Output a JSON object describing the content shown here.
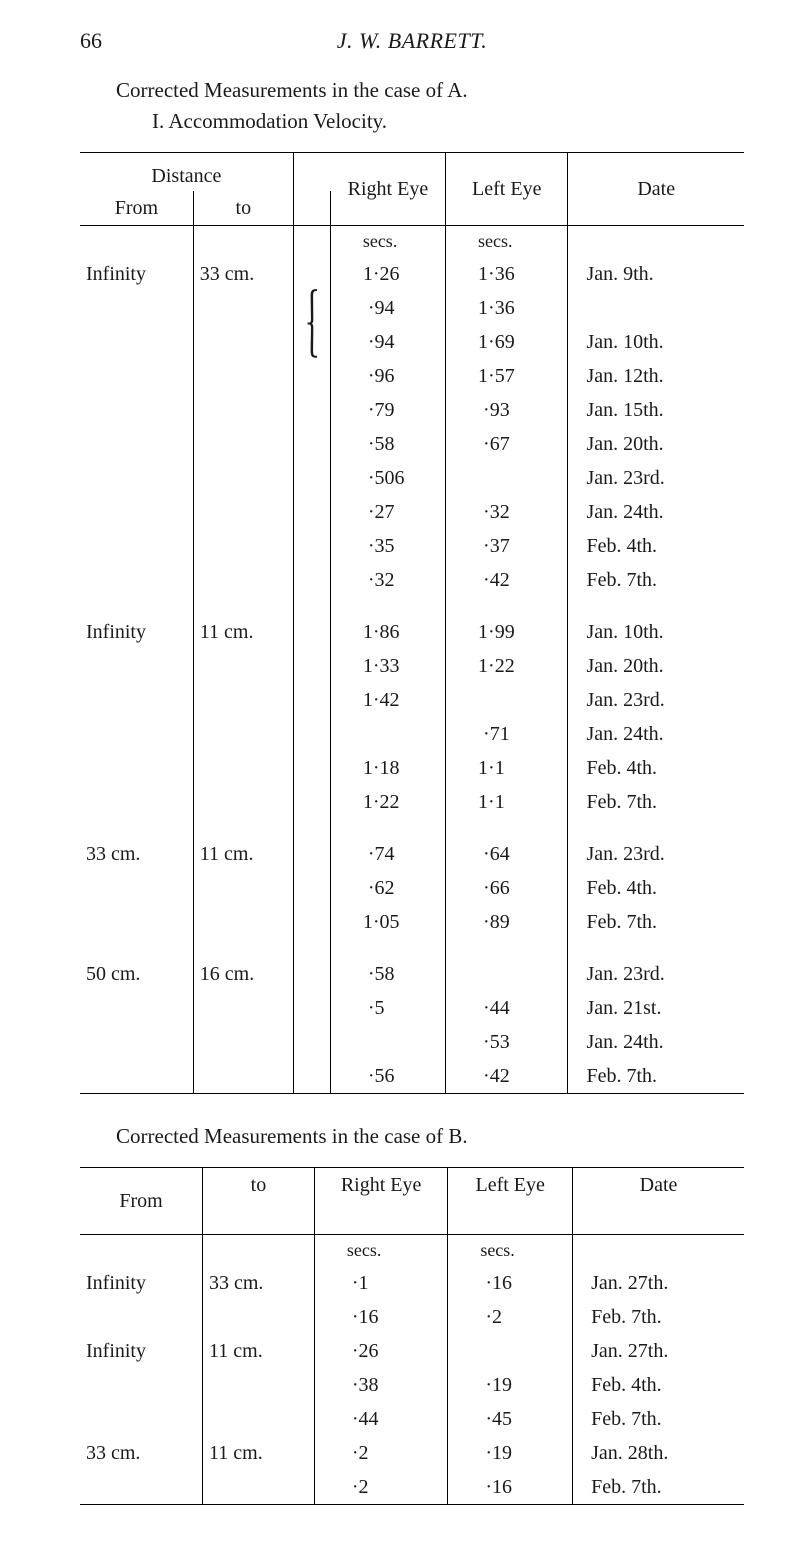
{
  "page_number": "66",
  "author": "J. W. BARRETT.",
  "caption_a": "Corrected Measurements in the case of A.",
  "subcaption_a": "I.  Accommodation Velocity.",
  "table_a": {
    "headers": {
      "distance": "Distance",
      "from": "From",
      "to": "to",
      "right": "Right Eye",
      "left": "Left Eye",
      "date": "Date"
    },
    "unit_label": "secs.",
    "groups": [
      {
        "from": "Infinity",
        "to": "33 cm.",
        "rows": [
          {
            "right": "1·26",
            "left": "1·36",
            "date": "Jan. 9th.",
            "brace": ""
          },
          {
            "right": " ·94",
            "left": "1·36",
            "date": "",
            "brace": "⎰"
          },
          {
            "right": " ·94",
            "left": "1·69",
            "date": "Jan. 10th.",
            "brace": "⎱",
            "left_brace_close": true
          },
          {
            "right": " ·96",
            "left": "1·57",
            "date": "Jan. 12th.",
            "brace": ""
          },
          {
            "right": " ·79",
            "left": " ·93",
            "date": "Jan. 15th.",
            "brace": ""
          },
          {
            "right": " ·58",
            "left": " ·67",
            "date": "Jan. 20th.",
            "brace": ""
          },
          {
            "right": " ·506",
            "left": "",
            "date": "Jan. 23rd.",
            "brace": ""
          },
          {
            "right": " ·27",
            "left": " ·32",
            "date": "Jan. 24th.",
            "brace": ""
          },
          {
            "right": " ·35",
            "left": " ·37",
            "date": "Feb. 4th.",
            "brace": ""
          },
          {
            "right": " ·32",
            "left": " ·42",
            "date": "Feb. 7th.",
            "brace": ""
          }
        ]
      },
      {
        "from": "Infinity",
        "to": "11 cm.",
        "rows": [
          {
            "right": "1·86",
            "left": "1·99",
            "date": "Jan. 10th."
          },
          {
            "right": "1·33",
            "left": "1·22",
            "date": "Jan. 20th."
          },
          {
            "right": "1·42",
            "left": "",
            "date": "Jan. 23rd."
          },
          {
            "right": "",
            "left": " ·71",
            "date": "Jan. 24th."
          },
          {
            "right": "1·18",
            "left": "1·1",
            "date": "Feb. 4th."
          },
          {
            "right": "1·22",
            "left": "1·1",
            "date": "Feb. 7th."
          }
        ]
      },
      {
        "from": "33 cm.",
        "to": "11 cm.",
        "rows": [
          {
            "right": " ·74",
            "left": " ·64",
            "date": "Jan. 23rd."
          },
          {
            "right": " ·62",
            "left": " ·66",
            "date": "Feb. 4th."
          },
          {
            "right": "1·05",
            "left": " ·89",
            "date": "Feb. 7th."
          }
        ]
      },
      {
        "from": "50 cm.",
        "to": "16 cm.",
        "rows": [
          {
            "right": " ·58",
            "left": "",
            "date": "Jan. 23rd."
          },
          {
            "right": " ·5",
            "left": " ·44",
            "date": "Jan. 21st."
          },
          {
            "right": "",
            "left": " ·53",
            "date": "Jan. 24th."
          },
          {
            "right": " ·56",
            "left": " ·42",
            "date": "Feb. 7th."
          }
        ]
      }
    ]
  },
  "caption_b": "Corrected Measurements in the case of B.",
  "table_b": {
    "headers": {
      "from": "From",
      "to": "to",
      "right": "Right Eye",
      "left": "Left Eye",
      "date": "Date"
    },
    "unit_label": "secs.",
    "groups": [
      {
        "from": "Infinity",
        "to": "33 cm.",
        "rows": [
          {
            "right": " ·1",
            "left": " ·16",
            "date": "Jan. 27th."
          },
          {
            "right": " ·16",
            "left": " ·2",
            "date": "Feb. 7th."
          }
        ]
      },
      {
        "from": "Infinity",
        "to": "11 cm.",
        "rows": [
          {
            "right": " ·26",
            "left": "",
            "date": "Jan. 27th."
          },
          {
            "right": " ·38",
            "left": " ·19",
            "date": "Feb. 4th."
          },
          {
            "right": " ·44",
            "left": " ·45",
            "date": "Feb. 7th."
          }
        ]
      },
      {
        "from": "33 cm.",
        "to": "11 cm.",
        "rows": [
          {
            "right": " ·2",
            "left": " ·19",
            "date": "Jan. 28th."
          },
          {
            "right": " ·2",
            "left": " ·16",
            "date": "Feb. 7th."
          }
        ]
      }
    ]
  }
}
